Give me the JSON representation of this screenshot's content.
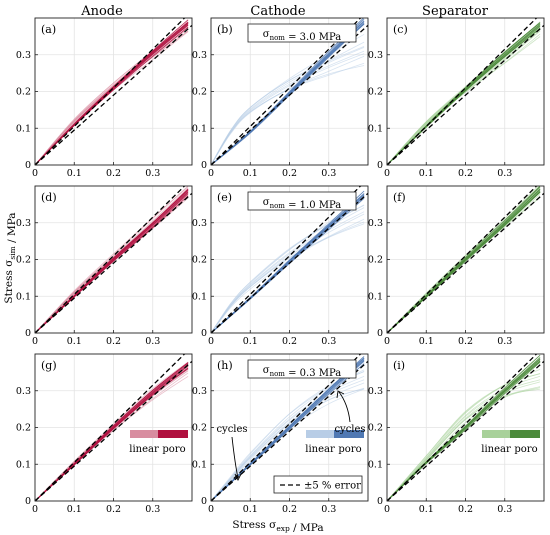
{
  "figure": {
    "columns": [
      "Anode",
      "Cathode",
      "Separator"
    ],
    "xlabel": "Stress σ_exp / MPa",
    "ylabel": "Stress σ_sim / MPa",
    "tick_values": [
      "0",
      "0.1",
      "0.2",
      "0.3"
    ],
    "colors": {
      "anode_linear": "#d88da0",
      "anode_poro": "#b0113f",
      "cathode_linear": "#b8cde6",
      "cathode_poro": "#4f78b3",
      "separator_linear": "#a8d19a",
      "separator_poro": "#4b8a3b",
      "error_band": "#000000",
      "grid": "#e3e3e3"
    },
    "legend": {
      "linear_label": "linear",
      "poro_label": "poro",
      "error_label": "±5 % error",
      "cycles_label": "cycles"
    }
  },
  "chart_data": [
    {
      "panel": "(a)",
      "material": "Anode",
      "row_stress": "3.0 MPa",
      "type": "line",
      "title": "Anode",
      "xlim": [
        0,
        0.4
      ],
      "ylim": [
        0,
        0.4
      ],
      "grid": true,
      "series": [
        {
          "name": "linear",
          "x": [
            0,
            0.1,
            0.2,
            0.3,
            0.39
          ],
          "y": [
            0,
            0.12,
            0.215,
            0.3,
            0.375
          ]
        },
        {
          "name": "poro",
          "x": [
            0,
            0.1,
            0.2,
            0.3,
            0.39
          ],
          "y": [
            0,
            0.11,
            0.21,
            0.305,
            0.385
          ]
        }
      ],
      "error_band": {
        "lower": [
          [
            0,
            0
          ],
          [
            0.4,
            0.38
          ]
        ],
        "upper": [
          [
            0,
            0
          ],
          [
            0.4,
            0.42
          ]
        ]
      }
    },
    {
      "panel": "(b)",
      "material": "Cathode",
      "row_stress": "3.0 MPa",
      "annotation": "σ_nom = 3.0 MPa",
      "type": "line",
      "title": "Cathode",
      "xlim": [
        0,
        0.4
      ],
      "ylim": [
        0,
        0.4
      ],
      "grid": true,
      "series": [
        {
          "name": "linear",
          "x": [
            0,
            0.05,
            0.1,
            0.2,
            0.3,
            0.39
          ],
          "y": [
            0,
            0.09,
            0.15,
            0.22,
            0.27,
            0.31
          ]
        },
        {
          "name": "poro",
          "x": [
            0,
            0.1,
            0.2,
            0.3,
            0.39
          ],
          "y": [
            0,
            0.09,
            0.195,
            0.3,
            0.39
          ]
        }
      ],
      "error_band": {
        "lower": [
          [
            0,
            0
          ],
          [
            0.4,
            0.38
          ]
        ],
        "upper": [
          [
            0,
            0
          ],
          [
            0.4,
            0.42
          ]
        ]
      }
    },
    {
      "panel": "(c)",
      "material": "Separator",
      "row_stress": "3.0 MPa",
      "type": "line",
      "title": "Separator",
      "xlim": [
        0,
        0.4
      ],
      "ylim": [
        0,
        0.4
      ],
      "grid": true,
      "series": [
        {
          "name": "linear",
          "x": [
            0,
            0.1,
            0.2,
            0.3,
            0.39
          ],
          "y": [
            0,
            0.115,
            0.205,
            0.29,
            0.37
          ]
        },
        {
          "name": "poro",
          "x": [
            0,
            0.1,
            0.2,
            0.3,
            0.39
          ],
          "y": [
            0,
            0.105,
            0.205,
            0.3,
            0.38
          ]
        }
      ],
      "error_band": {
        "lower": [
          [
            0,
            0
          ],
          [
            0.4,
            0.38
          ]
        ],
        "upper": [
          [
            0,
            0
          ],
          [
            0.4,
            0.42
          ]
        ]
      }
    },
    {
      "panel": "(d)",
      "material": "Anode",
      "row_stress": "1.0 MPa",
      "type": "line",
      "xlim": [
        0,
        0.4
      ],
      "ylim": [
        0,
        0.4
      ],
      "grid": true,
      "series": [
        {
          "name": "linear",
          "x": [
            0,
            0.1,
            0.2,
            0.3,
            0.39
          ],
          "y": [
            0,
            0.11,
            0.205,
            0.3,
            0.385
          ]
        },
        {
          "name": "poro",
          "x": [
            0,
            0.1,
            0.2,
            0.3,
            0.39
          ],
          "y": [
            0,
            0.1,
            0.2,
            0.295,
            0.385
          ]
        }
      ],
      "error_band": {
        "lower": [
          [
            0,
            0
          ],
          [
            0.4,
            0.38
          ]
        ],
        "upper": [
          [
            0,
            0
          ],
          [
            0.4,
            0.42
          ]
        ]
      }
    },
    {
      "panel": "(e)",
      "material": "Cathode",
      "row_stress": "1.0 MPa",
      "annotation": "σ_nom = 1.0 MPa",
      "type": "line",
      "xlim": [
        0,
        0.4
      ],
      "ylim": [
        0,
        0.4
      ],
      "grid": true,
      "series": [
        {
          "name": "linear",
          "x": [
            0,
            0.05,
            0.1,
            0.2,
            0.3,
            0.39
          ],
          "y": [
            0,
            0.075,
            0.13,
            0.215,
            0.28,
            0.33
          ]
        },
        {
          "name": "poro",
          "x": [
            0,
            0.1,
            0.2,
            0.3,
            0.39
          ],
          "y": [
            0,
            0.095,
            0.195,
            0.29,
            0.375
          ]
        }
      ],
      "error_band": {
        "lower": [
          [
            0,
            0
          ],
          [
            0.4,
            0.38
          ]
        ],
        "upper": [
          [
            0,
            0
          ],
          [
            0.4,
            0.42
          ]
        ]
      }
    },
    {
      "panel": "(f)",
      "material": "Separator",
      "row_stress": "1.0 MPa",
      "type": "line",
      "xlim": [
        0,
        0.4
      ],
      "ylim": [
        0,
        0.4
      ],
      "grid": true,
      "series": [
        {
          "name": "linear",
          "x": [
            0,
            0.1,
            0.2,
            0.3,
            0.39
          ],
          "y": [
            0,
            0.105,
            0.205,
            0.3,
            0.385
          ]
        },
        {
          "name": "poro",
          "x": [
            0,
            0.1,
            0.2,
            0.3,
            0.39
          ],
          "y": [
            0,
            0.1,
            0.2,
            0.298,
            0.39
          ]
        }
      ],
      "error_band": {
        "lower": [
          [
            0,
            0
          ],
          [
            0.4,
            0.38
          ]
        ],
        "upper": [
          [
            0,
            0
          ],
          [
            0.4,
            0.42
          ]
        ]
      }
    },
    {
      "panel": "(g)",
      "material": "Anode",
      "row_stress": "0.3 MPa",
      "type": "line",
      "xlim": [
        0,
        0.4
      ],
      "ylim": [
        0,
        0.4
      ],
      "grid": true,
      "series": [
        {
          "name": "linear",
          "x": [
            0,
            0.1,
            0.2,
            0.3,
            0.39
          ],
          "y": [
            0,
            0.105,
            0.2,
            0.29,
            0.36
          ]
        },
        {
          "name": "poro",
          "x": [
            0,
            0.1,
            0.2,
            0.3,
            0.39
          ],
          "y": [
            0,
            0.1,
            0.2,
            0.295,
            0.37
          ]
        }
      ],
      "error_band": {
        "lower": [
          [
            0,
            0
          ],
          [
            0.4,
            0.38
          ]
        ],
        "upper": [
          [
            0,
            0
          ],
          [
            0.4,
            0.42
          ]
        ]
      }
    },
    {
      "panel": "(h)",
      "material": "Cathode",
      "row_stress": "0.3 MPa",
      "annotation": "σ_nom = 0.3 MPa",
      "type": "line",
      "xlim": [
        0,
        0.4
      ],
      "ylim": [
        0,
        0.4
      ],
      "grid": true,
      "series": [
        {
          "name": "linear",
          "x": [
            0,
            0.05,
            0.1,
            0.2,
            0.3,
            0.39
          ],
          "y": [
            0,
            0.06,
            0.12,
            0.22,
            0.29,
            0.33
          ]
        },
        {
          "name": "poro",
          "x": [
            0,
            0.1,
            0.2,
            0.3,
            0.39
          ],
          "y": [
            0,
            0.1,
            0.2,
            0.3,
            0.385
          ]
        }
      ],
      "error_band": {
        "lower": [
          [
            0,
            0
          ],
          [
            0.4,
            0.38
          ]
        ],
        "upper": [
          [
            0,
            0
          ],
          [
            0.4,
            0.42
          ]
        ]
      }
    },
    {
      "panel": "(i)",
      "material": "Separator",
      "row_stress": "0.3 MPa",
      "type": "line",
      "xlim": [
        0,
        0.4
      ],
      "ylim": [
        0,
        0.4
      ],
      "grid": true,
      "series": [
        {
          "name": "linear",
          "x": [
            0,
            0.1,
            0.2,
            0.3,
            0.39
          ],
          "y": [
            0,
            0.115,
            0.23,
            0.3,
            0.33
          ]
        },
        {
          "name": "poro",
          "x": [
            0,
            0.1,
            0.2,
            0.3,
            0.39
          ],
          "y": [
            0,
            0.105,
            0.2,
            0.3,
            0.385
          ]
        }
      ],
      "error_band": {
        "lower": [
          [
            0,
            0
          ],
          [
            0.4,
            0.38
          ]
        ],
        "upper": [
          [
            0,
            0
          ],
          [
            0.4,
            0.42
          ]
        ]
      }
    }
  ]
}
